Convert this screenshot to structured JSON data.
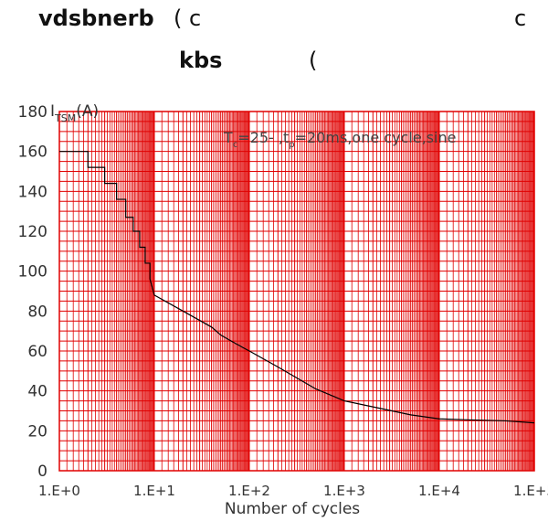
{
  "header": {
    "line1_left": "vdsbnerb",
    "line1_mid": "( c",
    "line1_right": "c",
    "line2_left": "kbs",
    "line2_mid": "("
  },
  "colors": {
    "grid": "#e00000",
    "curve": "#000000",
    "text": "#333333"
  },
  "chart_data": {
    "type": "line",
    "title": "",
    "xlabel": "Number of cycles",
    "ylabel_main": "I",
    "ylabel_sub": "TSM",
    "ylabel_unit": "(A)",
    "x_scale": "log",
    "xlim": [
      1,
      100000
    ],
    "ylim": [
      0,
      180
    ],
    "x_ticks": [
      1,
      10,
      100,
      1000,
      10000,
      100000
    ],
    "x_tick_labels": [
      "1.E+0",
      "1.E+1",
      "1.E+2",
      "1.E+3",
      "1.E+4",
      "1.E+5"
    ],
    "y_ticks": [
      0,
      20,
      40,
      60,
      80,
      100,
      120,
      140,
      160,
      180
    ],
    "y_tick_labels": [
      "0",
      "20",
      "40",
      "60",
      "80",
      "100",
      "120",
      "140",
      "160",
      "180"
    ],
    "grid": true,
    "annotation": {
      "t": "T",
      "t_sub": "c",
      "mid": "=25",
      "dash": "- ,",
      "tp": "t",
      "tp_sub": "p",
      "rest": "=20ms,one cycle,sine"
    },
    "series": [
      {
        "x": [
          1,
          2,
          2,
          3,
          3,
          4,
          4,
          5,
          5,
          6,
          6,
          7,
          7,
          8,
          8,
          9,
          9,
          10,
          20,
          40,
          50,
          70,
          100,
          200,
          500,
          1000,
          2000,
          5000,
          10000,
          20000,
          50000,
          100000
        ],
        "y": [
          160,
          160,
          152,
          152,
          144,
          144,
          136,
          136,
          127,
          127,
          120,
          120,
          112,
          112,
          104,
          104,
          96,
          88,
          80,
          72,
          68,
          64,
          60,
          52,
          41,
          35,
          32,
          28,
          26,
          25.5,
          25,
          24
        ]
      }
    ]
  }
}
